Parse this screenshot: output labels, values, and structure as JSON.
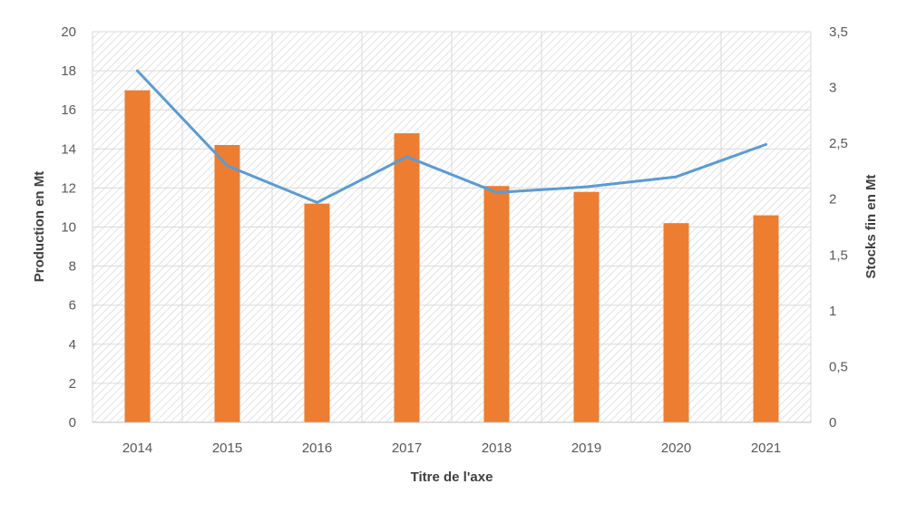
{
  "chart_data": {
    "type": "bar",
    "title": "",
    "categories": [
      "2014",
      "2015",
      "2016",
      "2017",
      "2018",
      "2019",
      "2020",
      "2021"
    ],
    "xlabel": "Titre de l'axe",
    "ylabel": "Production  en Mt",
    "y2label": "Stocks fin en Mt",
    "ylim": [
      0,
      20
    ],
    "y2lim": [
      0,
      3.5
    ],
    "yticks": [
      "0",
      "2",
      "4",
      "6",
      "8",
      "10",
      "12",
      "14",
      "16",
      "18",
      "20"
    ],
    "y2ticks": [
      "0",
      "0,5",
      "1",
      "1,5",
      "2",
      "2,5",
      "3",
      "3,5"
    ],
    "grid": true,
    "series": [
      {
        "type": "bar",
        "axis": "left",
        "color": "#ED7D31",
        "values": [
          17.0,
          14.2,
          11.2,
          14.8,
          12.1,
          11.8,
          10.2,
          10.6
        ]
      },
      {
        "type": "line",
        "axis": "right",
        "color": "#5B9BD5",
        "values": [
          3.15,
          2.3,
          1.97,
          2.38,
          2.06,
          2.11,
          2.2,
          2.49
        ]
      }
    ]
  }
}
